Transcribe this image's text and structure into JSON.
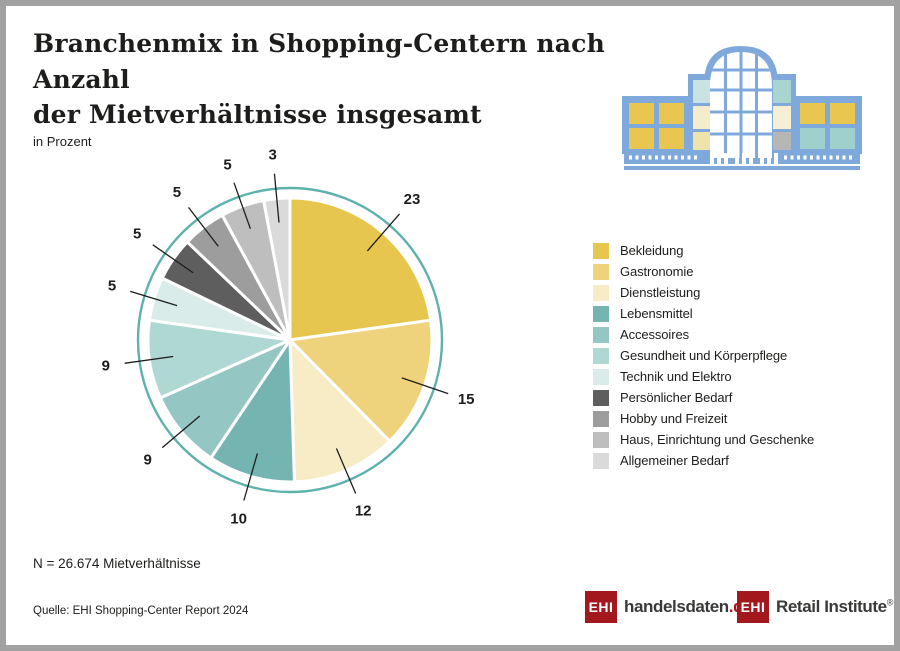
{
  "header": {
    "title_line1": "Branchenmix in Shopping-Centern nach Anzahl",
    "title_line2": "der Mietverhältnisse insgesamt",
    "subtitle": "in Prozent"
  },
  "icons": {
    "building_icon": "shopping-center-icon"
  },
  "chart_data": {
    "type": "pie",
    "title": "Branchenmix in Shopping-Centern nach Anzahl der Mietverhältnisse insgesamt",
    "unit": "in Prozent",
    "start_angle_deg": 0,
    "direction": "clockwise",
    "legend_position": "right",
    "ring_color": "#5fb1ad",
    "label_color": "#1d1d1b",
    "slices": [
      {
        "label": "Bekleidung",
        "value": 23,
        "color": "#e6c64f"
      },
      {
        "label": "Gastronomie",
        "value": 15,
        "color": "#efd37c"
      },
      {
        "label": "Dienstleistung",
        "value": 12,
        "color": "#f7ecc6"
      },
      {
        "label": "Lebensmittel",
        "value": 10,
        "color": "#74b5b1"
      },
      {
        "label": "Accessoires",
        "value": 9,
        "color": "#94c7c3"
      },
      {
        "label": "Gesundheit und Körperpflege",
        "value": 9,
        "color": "#afd8d4"
      },
      {
        "label": "Technik und Elektro",
        "value": 5,
        "color": "#d9eceA"
      },
      {
        "label": "Persönlicher Bedarf",
        "value": 5,
        "color": "#5e5e5e"
      },
      {
        "label": "Hobby und Freizeit",
        "value": 5,
        "color": "#9d9d9d"
      },
      {
        "label": "Haus, Einrichtung und Geschenke",
        "value": 5,
        "color": "#bebebe"
      },
      {
        "label": "Allgemeiner Bedarf",
        "value": 3,
        "color": "#dadada"
      }
    ]
  },
  "footnotes": {
    "n_text": "N = 26.674 Mietverhältnisse",
    "source": "Quelle: EHI Shopping-Center Report 2024"
  },
  "logos": {
    "brand_red": "#a2181d",
    "handelsdaten": {
      "box": "EHI",
      "text": "handelsdaten",
      "suffix": ".de"
    },
    "retail": {
      "box": "EHI",
      "text": "Retail Institute",
      "reg": "®"
    }
  }
}
